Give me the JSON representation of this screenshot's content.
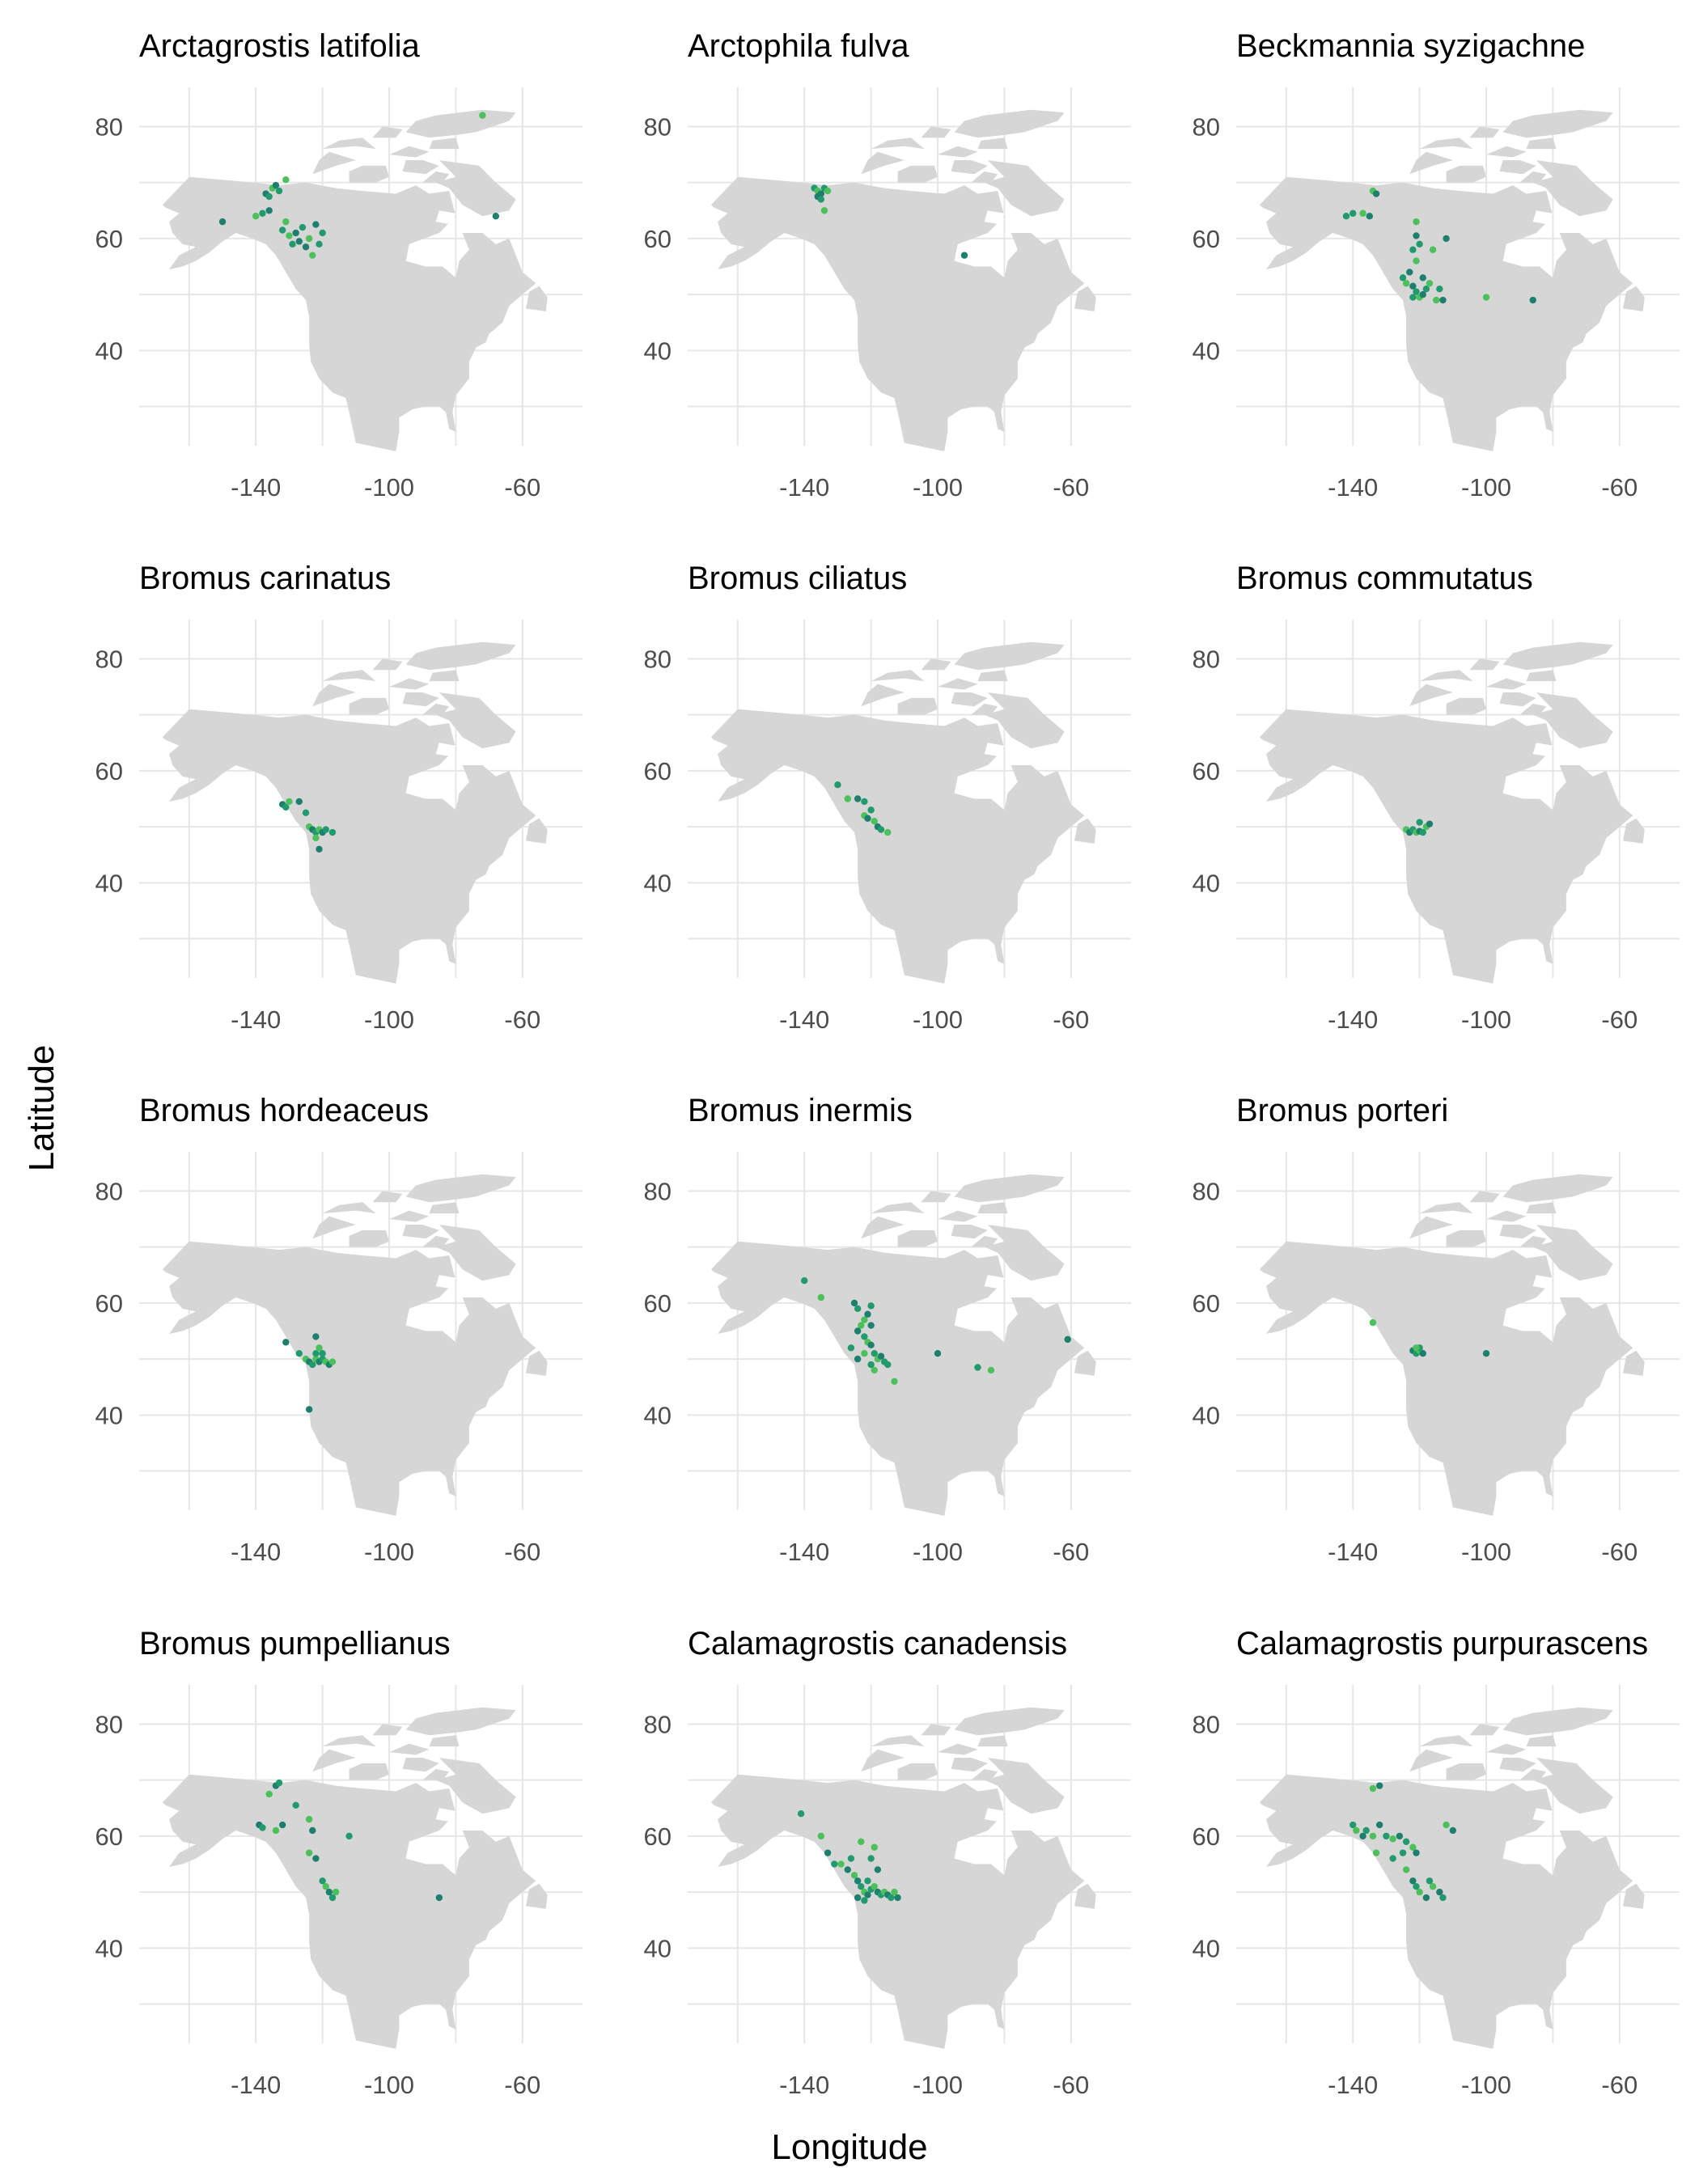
{
  "figure": {
    "xlabel": "Longitude",
    "ylabel": "Latitude",
    "colors": {
      "land": "#d6d6d6",
      "grid": "#e6e6e6",
      "tick": "#4d4d4d",
      "point_dark": "#1f7f6e",
      "point_mid": "#219a6e",
      "point_light": "#4cc05a"
    },
    "x_ticks": [
      -140,
      -100,
      -60
    ],
    "y_ticks": [
      40,
      60,
      80
    ],
    "xlim": [
      -175,
      -42
    ],
    "ylim": [
      23,
      87
    ]
  },
  "chart_data": [
    {
      "type": "scatter",
      "title": "Arctagrostis latifolia",
      "points": [
        [
          -137,
          68
        ],
        [
          -136,
          67.5
        ],
        [
          -135,
          69
        ],
        [
          -134,
          69.5
        ],
        [
          -133,
          68.5
        ],
        [
          -131,
          70.5
        ],
        [
          -136,
          65
        ],
        [
          -138,
          64.5
        ],
        [
          -140,
          64
        ],
        [
          -150,
          63
        ],
        [
          -132,
          61.5
        ],
        [
          -130,
          60.5
        ],
        [
          -128,
          61
        ],
        [
          -126,
          62
        ],
        [
          -124,
          60
        ],
        [
          -122,
          62.5
        ],
        [
          -121,
          59
        ],
        [
          -123,
          57
        ],
        [
          -125,
          58.5
        ],
        [
          -129,
          59
        ],
        [
          -131,
          63
        ],
        [
          -127,
          59.5
        ],
        [
          -120,
          61
        ],
        [
          -72,
          82
        ],
        [
          -68,
          64
        ]
      ]
    },
    {
      "type": "scatter",
      "title": "Arctophila fulva",
      "points": [
        [
          -137,
          69
        ],
        [
          -136,
          68.5
        ],
        [
          -135,
          68
        ],
        [
          -134,
          69
        ],
        [
          -133,
          68.5
        ],
        [
          -136,
          67.5
        ],
        [
          -135,
          67
        ],
        [
          -134,
          65
        ],
        [
          -92,
          57
        ]
      ]
    },
    {
      "type": "scatter",
      "title": "Beckmannia syzigachne",
      "points": [
        [
          -134,
          68.5
        ],
        [
          -133,
          68
        ],
        [
          -140,
          64.5
        ],
        [
          -137,
          64.5
        ],
        [
          -135,
          64
        ],
        [
          -142,
          64
        ],
        [
          -121,
          63
        ],
        [
          -121,
          60.5
        ],
        [
          -120,
          59
        ],
        [
          -116,
          58
        ],
        [
          -112,
          60
        ],
        [
          -122,
          58
        ],
        [
          -121,
          56
        ],
        [
          -123,
          54
        ],
        [
          -125,
          53
        ],
        [
          -124,
          52
        ],
        [
          -122,
          51.5
        ],
        [
          -121,
          50.5
        ],
        [
          -120,
          49.5
        ],
        [
          -119,
          50
        ],
        [
          -118,
          51
        ],
        [
          -117,
          52
        ],
        [
          -119,
          53
        ],
        [
          -122,
          49.5
        ],
        [
          -115,
          49
        ],
        [
          -113,
          49
        ],
        [
          -114,
          51
        ],
        [
          -100,
          49.5
        ],
        [
          -86,
          49
        ]
      ]
    },
    {
      "type": "scatter",
      "title": "Bromus carinatus",
      "points": [
        [
          -132,
          54
        ],
        [
          -131,
          53.5
        ],
        [
          -130,
          54.5
        ],
        [
          -127,
          54.5
        ],
        [
          -125,
          52.5
        ],
        [
          -124,
          50
        ],
        [
          -123,
          49.5
        ],
        [
          -122,
          49
        ],
        [
          -121,
          49.5
        ],
        [
          -120,
          49
        ],
        [
          -119,
          49.5
        ],
        [
          -122,
          48
        ],
        [
          -121,
          46
        ],
        [
          -117,
          49
        ]
      ]
    },
    {
      "type": "scatter",
      "title": "Bromus ciliatus",
      "points": [
        [
          -130,
          57.5
        ],
        [
          -127,
          55
        ],
        [
          -124,
          55
        ],
        [
          -122,
          54.5
        ],
        [
          -122,
          52
        ],
        [
          -121,
          51.5
        ],
        [
          -120,
          53
        ],
        [
          -119,
          51
        ],
        [
          -118,
          50
        ],
        [
          -117,
          49.5
        ],
        [
          -115,
          49
        ]
      ]
    },
    {
      "type": "scatter",
      "title": "Bromus commutatus",
      "points": [
        [
          -124,
          49.5
        ],
        [
          -123,
          49
        ],
        [
          -122,
          49.5
        ],
        [
          -121,
          49
        ],
        [
          -120,
          49.2
        ],
        [
          -119,
          49
        ],
        [
          -118,
          50
        ],
        [
          -117,
          50.5
        ],
        [
          -120,
          50.8
        ]
      ]
    },
    {
      "type": "scatter",
      "title": "Bromus hordeaceus",
      "points": [
        [
          -131,
          53
        ],
        [
          -127,
          51
        ],
        [
          -125,
          50
        ],
        [
          -124,
          49.5
        ],
        [
          -123,
          49
        ],
        [
          -122,
          50
        ],
        [
          -121,
          49.5
        ],
        [
          -120,
          50
        ],
        [
          -119,
          49.5
        ],
        [
          -118,
          49
        ],
        [
          -122,
          51
        ],
        [
          -121,
          52
        ],
        [
          -122,
          54
        ],
        [
          -120,
          51
        ],
        [
          -117,
          49.5
        ],
        [
          -124,
          41
        ]
      ]
    },
    {
      "type": "scatter",
      "title": "Bromus inermis",
      "points": [
        [
          -140,
          64
        ],
        [
          -135,
          61
        ],
        [
          -125,
          60
        ],
        [
          -124,
          59
        ],
        [
          -122,
          57
        ],
        [
          -121,
          58
        ],
        [
          -120,
          59.5
        ],
        [
          -123,
          56
        ],
        [
          -124,
          55
        ],
        [
          -122,
          54
        ],
        [
          -121,
          53
        ],
        [
          -120,
          52.5
        ],
        [
          -119,
          51
        ],
        [
          -118,
          50
        ],
        [
          -117,
          50.5
        ],
        [
          -116,
          49.5
        ],
        [
          -122,
          51
        ],
        [
          -124,
          50
        ],
        [
          -120,
          49
        ],
        [
          -119,
          48
        ],
        [
          -120,
          56
        ],
        [
          -126,
          52
        ],
        [
          -113,
          46
        ],
        [
          -100,
          51
        ],
        [
          -88,
          48.5
        ],
        [
          -84,
          48
        ],
        [
          -61,
          53.5
        ],
        [
          -115,
          49
        ]
      ]
    },
    {
      "type": "scatter",
      "title": "Bromus porteri",
      "points": [
        [
          -134,
          56.5
        ],
        [
          -122,
          51.5
        ],
        [
          -121,
          51
        ],
        [
          -120,
          51.5
        ],
        [
          -119,
          51
        ],
        [
          -120,
          52
        ],
        [
          -121,
          52
        ],
        [
          -100,
          51
        ]
      ]
    },
    {
      "type": "scatter",
      "title": "Bromus pumpellianus",
      "points": [
        [
          -134,
          69
        ],
        [
          -133,
          69.5
        ],
        [
          -136,
          67.5
        ],
        [
          -139,
          62
        ],
        [
          -138,
          61.5
        ],
        [
          -134,
          61
        ],
        [
          -132,
          62
        ],
        [
          -128,
          65.5
        ],
        [
          -124,
          63
        ],
        [
          -123,
          61
        ],
        [
          -112,
          60
        ],
        [
          -124,
          57
        ],
        [
          -122,
          56
        ],
        [
          -120,
          52
        ],
        [
          -119,
          51
        ],
        [
          -118,
          50
        ],
        [
          -117,
          49
        ],
        [
          -116,
          50
        ],
        [
          -85,
          49
        ]
      ]
    },
    {
      "type": "scatter",
      "title": "Calamagrostis canadensis",
      "points": [
        [
          -141,
          64
        ],
        [
          -135,
          60
        ],
        [
          -133,
          57
        ],
        [
          -131,
          55
        ],
        [
          -129,
          55
        ],
        [
          -127,
          54
        ],
        [
          -126,
          56
        ],
        [
          -125,
          53
        ],
        [
          -124,
          52
        ],
        [
          -123,
          51
        ],
        [
          -122,
          50
        ],
        [
          -121,
          49.5
        ],
        [
          -120,
          50.5
        ],
        [
          -119,
          51
        ],
        [
          -118,
          50
        ],
        [
          -117,
          49.5
        ],
        [
          -116,
          50
        ],
        [
          -115,
          49.5
        ],
        [
          -114,
          49
        ],
        [
          -113,
          50
        ],
        [
          -112,
          49
        ],
        [
          -120,
          56
        ],
        [
          -119,
          58
        ],
        [
          -118,
          54
        ],
        [
          -121,
          52
        ],
        [
          -123,
          59
        ],
        [
          -124,
          49
        ],
        [
          -122,
          48.5
        ]
      ]
    },
    {
      "type": "scatter",
      "title": "Calamagrostis purpurascens",
      "points": [
        [
          -134,
          68.5
        ],
        [
          -132,
          69
        ],
        [
          -140,
          62
        ],
        [
          -139,
          61
        ],
        [
          -137,
          60
        ],
        [
          -136,
          61
        ],
        [
          -134,
          60
        ],
        [
          -132,
          62
        ],
        [
          -130,
          60
        ],
        [
          -128,
          59.5
        ],
        [
          -126,
          60
        ],
        [
          -124,
          59
        ],
        [
          -122,
          58
        ],
        [
          -121,
          57
        ],
        [
          -125,
          57
        ],
        [
          -124,
          54
        ],
        [
          -122,
          52
        ],
        [
          -121,
          51
        ],
        [
          -120,
          50
        ],
        [
          -118,
          49
        ],
        [
          -117,
          52
        ],
        [
          -116,
          51
        ],
        [
          -114,
          50
        ],
        [
          -113,
          49
        ],
        [
          -112,
          62
        ],
        [
          -110,
          61
        ],
        [
          -128,
          56
        ],
        [
          -133,
          57
        ]
      ]
    }
  ]
}
